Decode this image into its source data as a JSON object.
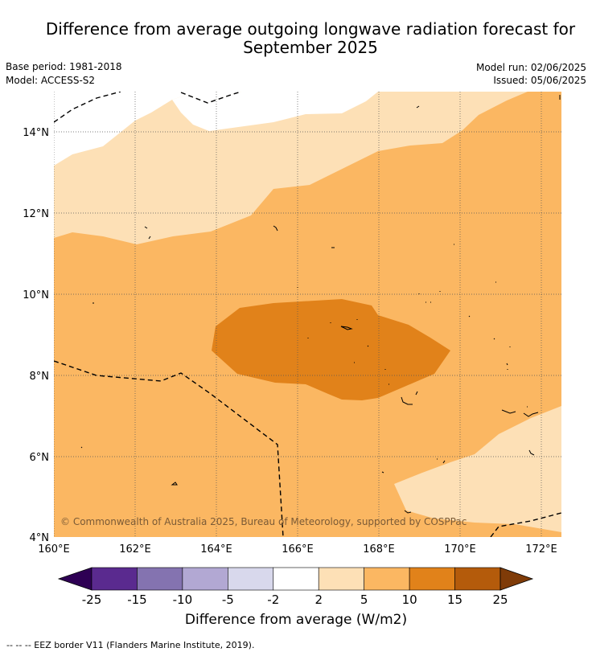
{
  "header": {
    "title_line1": "Difference from average outgoing longwave radiation forecast for",
    "title_line2": "September 2025",
    "base_period": "Base period: 1981-2018",
    "model": "Model: ACCESS-S2",
    "model_run": "Model run: 02/06/2025",
    "issued": "Issued: 05/06/2025"
  },
  "map": {
    "lat_labels": [
      "14°N",
      "12°N",
      "10°N",
      "8°N",
      "6°N",
      "4°N"
    ],
    "lon_labels": [
      "160°E",
      "162°E",
      "164°E",
      "166°E",
      "168°E",
      "170°E",
      "172°E"
    ],
    "copyright": "© Commonwealth of Australia 2025, Bureau of Meteorology, supported by COSPPac"
  },
  "colorbar": {
    "ticks": [
      "-25",
      "-15",
      "-10",
      "-5",
      "-2",
      "2",
      "5",
      "10",
      "15",
      "25"
    ],
    "colors": [
      "#5a2a8f",
      "#8473b0",
      "#b2a8d3",
      "#d8d8ec",
      "#ffffff",
      "#fde0b6",
      "#fbb762",
      "#e1821a",
      "#b45b0b"
    ],
    "low_color": "#2e0054",
    "high_color": "#7f3b08",
    "title": "Difference from average (W/m2)"
  },
  "footer": {
    "eez_note": "--  --  -- EEZ border V11 (Flanders Marine Institute, 2019)."
  }
}
